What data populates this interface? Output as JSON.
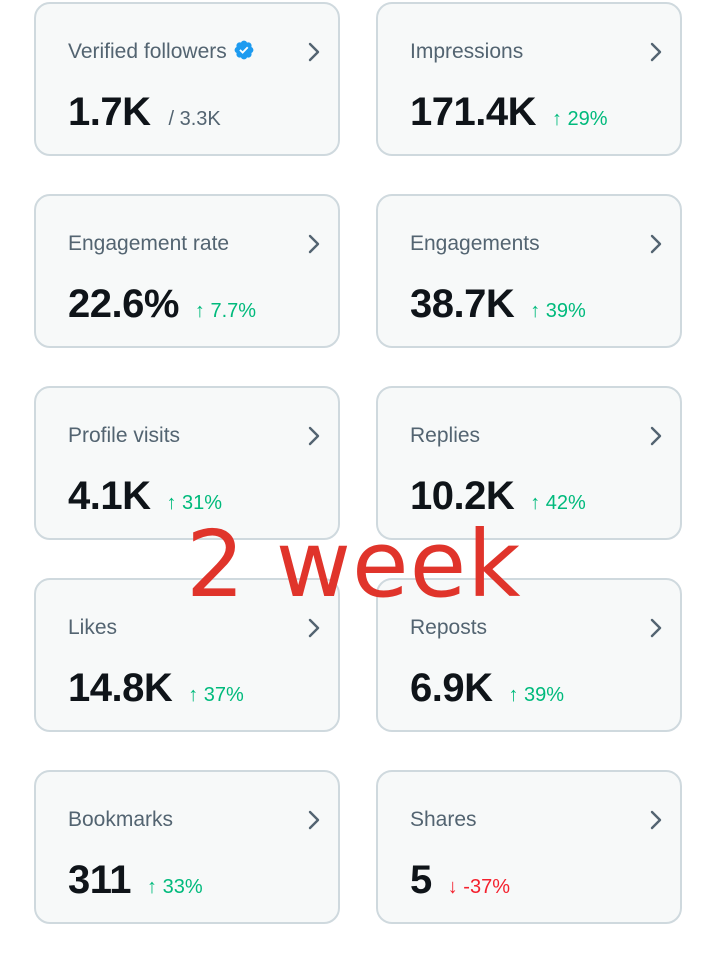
{
  "colors": {
    "card_bg": "#f7f9f9",
    "card_border": "#cfd9de",
    "positive": "#00ba7c",
    "negative": "#f4212e",
    "verified_badge": "#1d9bf0",
    "overlay_text": "#e0342b"
  },
  "cards": [
    {
      "title": "Verified followers",
      "value": "1.7K",
      "total": "/ 3.3K",
      "icon": "verified-badge-icon"
    },
    {
      "title": "Impressions",
      "value": "171.4K",
      "delta": "↑ 29%",
      "trend": "up"
    },
    {
      "title": "Engagement rate",
      "value": "22.6%",
      "delta": "↑ 7.7%",
      "trend": "up"
    },
    {
      "title": "Engagements",
      "value": "38.7K",
      "delta": "↑ 39%",
      "trend": "up"
    },
    {
      "title": "Profile visits",
      "value": "4.1K",
      "delta": "↑ 31%",
      "trend": "up"
    },
    {
      "title": "Replies",
      "value": "10.2K",
      "delta": "↑ 42%",
      "trend": "up"
    },
    {
      "title": "Likes",
      "value": "14.8K",
      "delta": "↑ 37%",
      "trend": "up"
    },
    {
      "title": "Reposts",
      "value": "6.9K",
      "delta": "↑ 39%",
      "trend": "up"
    },
    {
      "title": "Bookmarks",
      "value": "311",
      "delta": "↑ 33%",
      "trend": "up"
    },
    {
      "title": "Shares",
      "value": "5",
      "delta": "↓ -37%",
      "trend": "down"
    }
  ],
  "overlay": {
    "text": "2 week"
  }
}
